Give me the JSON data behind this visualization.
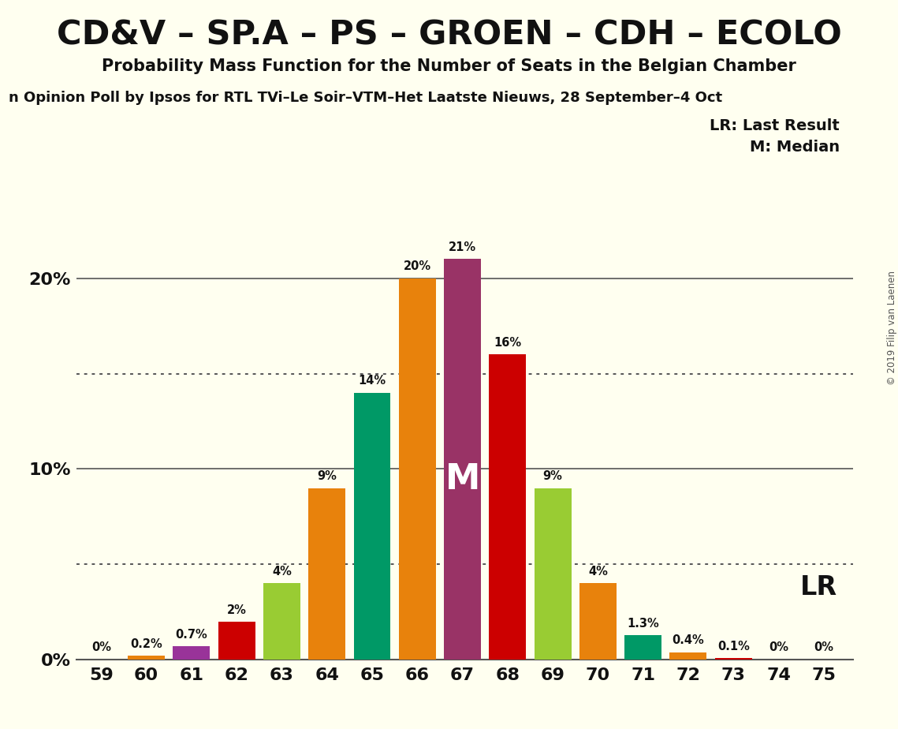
{
  "title": "CD&V – SP.A – PS – GROEN – CDH – ECOLO",
  "subtitle": "Probability Mass Function for the Number of Seats in the Belgian Chamber",
  "poll_line": "n Opinion Poll by Ipsos for RTL TVi–Le Soir–VTM–Het Laatste Nieuws, 28 September–4 Oct",
  "copyright": "© 2019 Filip van Laenen",
  "seats": [
    59,
    60,
    61,
    62,
    63,
    64,
    65,
    66,
    67,
    68,
    69,
    70,
    71,
    72,
    73,
    74,
    75
  ],
  "values": [
    0.02,
    0.2,
    0.7,
    2.0,
    4.0,
    9.0,
    14.0,
    20.0,
    21.0,
    16.0,
    9.0,
    4.0,
    1.3,
    0.4,
    0.1,
    0.02,
    0.02
  ],
  "labels": [
    "0%",
    "0.2%",
    "0.7%",
    "2%",
    "4%",
    "9%",
    "14%",
    "20%",
    "21%",
    "16%",
    "9%",
    "4%",
    "1.3%",
    "0.4%",
    "0.1%",
    "0%",
    "0%"
  ],
  "colors": [
    "#e8820c",
    "#e8820c",
    "#993399",
    "#cc0000",
    "#99cc33",
    "#e8820c",
    "#009966",
    "#e8820c",
    "#993366",
    "#cc0000",
    "#99cc33",
    "#e8820c",
    "#009966",
    "#e8820c",
    "#cc0000",
    "#e8820c",
    "#cc0000"
  ],
  "median_seat": 67,
  "lr_seat": 72,
  "background_color": "#fffff0",
  "ymax": 23.5,
  "ytick_vals": [
    0,
    10,
    20
  ],
  "dotted_lines": [
    5,
    15
  ],
  "legend_lr": "LR: Last Result",
  "legend_m": "M: Median"
}
